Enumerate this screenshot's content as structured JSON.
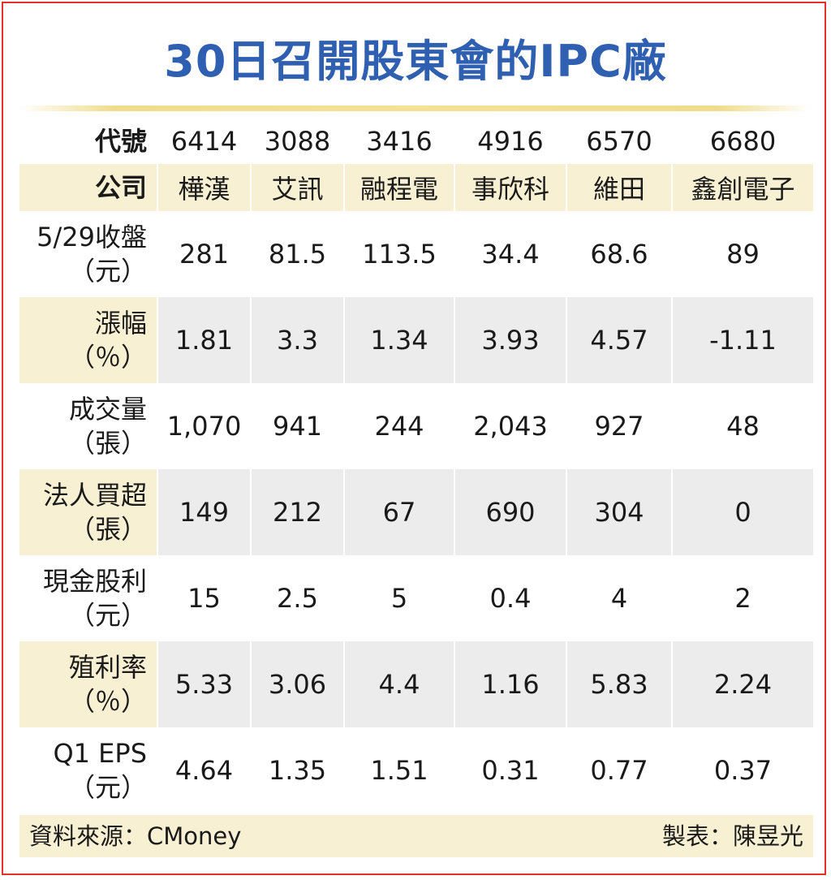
{
  "title": "30日召開股東會的IPC廠",
  "header": {
    "code_label": "代號",
    "company_label": "公司"
  },
  "columns": [
    {
      "code": "6414",
      "company": "樺漢"
    },
    {
      "code": "3088",
      "company": "艾訊"
    },
    {
      "code": "3416",
      "company": "融程電"
    },
    {
      "code": "4916",
      "company": "事欣科"
    },
    {
      "code": "6570",
      "company": "維田"
    },
    {
      "code": "6680",
      "company": "鑫創電子"
    }
  ],
  "rows": [
    {
      "label": "5/29收盤",
      "unit": "（元）",
      "values": [
        "281",
        "81.5",
        "113.5",
        "34.4",
        "68.6",
        "89"
      ]
    },
    {
      "label": "漲幅",
      "unit": "（％）",
      "values": [
        "1.81",
        "3.3",
        "1.34",
        "3.93",
        "4.57",
        "-1.11"
      ]
    },
    {
      "label": "成交量",
      "unit": "（張）",
      "values": [
        "1,070",
        "941",
        "244",
        "2,043",
        "927",
        "48"
      ]
    },
    {
      "label": "法人買超",
      "unit": "（張）",
      "values": [
        "149",
        "212",
        "67",
        "690",
        "304",
        "0"
      ]
    },
    {
      "label": "現金股利",
      "unit": "（元）",
      "values": [
        "15",
        "2.5",
        "5",
        "0.4",
        "4",
        "2"
      ]
    },
    {
      "label": "殖利率",
      "unit": "（％）",
      "values": [
        "5.33",
        "3.06",
        "4.4",
        "1.16",
        "5.83",
        "2.24"
      ]
    },
    {
      "label": "Q1 EPS",
      "unit": "（元）",
      "values": [
        "4.64",
        "1.35",
        "1.51",
        "0.31",
        "0.77",
        "0.37"
      ]
    }
  ],
  "footer": {
    "source": "資料來源：CMoney",
    "maker": "製表：陳昱光"
  },
  "colors": {
    "title": "#2f5fb0",
    "border": "#e4322b",
    "highlight": "#f8f0d2",
    "alt_row": "#ececec"
  }
}
